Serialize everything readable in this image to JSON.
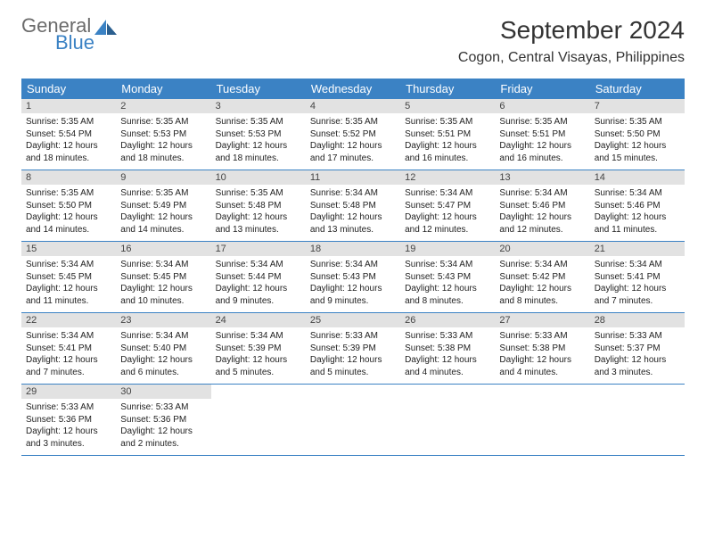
{
  "logo": {
    "general": "General",
    "blue": "Blue"
  },
  "title": "September 2024",
  "location": "Cogon, Central Visayas, Philippines",
  "colors": {
    "header_bg": "#3b82c4",
    "daynum_bg": "#e2e2e2",
    "row_border": "#3b82c4",
    "text": "#222222",
    "logo_gray": "#6b6b6b",
    "logo_blue": "#3b82c4"
  },
  "typography": {
    "title_fontsize": 28,
    "location_fontsize": 16,
    "dayhead_fontsize": 13,
    "daynum_fontsize": 11,
    "body_fontsize": 10
  },
  "day_names": [
    "Sunday",
    "Monday",
    "Tuesday",
    "Wednesday",
    "Thursday",
    "Friday",
    "Saturday"
  ],
  "weeks": [
    [
      {
        "n": "1",
        "sr": "5:35 AM",
        "ss": "5:54 PM",
        "dl": "12 hours and 18 minutes."
      },
      {
        "n": "2",
        "sr": "5:35 AM",
        "ss": "5:53 PM",
        "dl": "12 hours and 18 minutes."
      },
      {
        "n": "3",
        "sr": "5:35 AM",
        "ss": "5:53 PM",
        "dl": "12 hours and 18 minutes."
      },
      {
        "n": "4",
        "sr": "5:35 AM",
        "ss": "5:52 PM",
        "dl": "12 hours and 17 minutes."
      },
      {
        "n": "5",
        "sr": "5:35 AM",
        "ss": "5:51 PM",
        "dl": "12 hours and 16 minutes."
      },
      {
        "n": "6",
        "sr": "5:35 AM",
        "ss": "5:51 PM",
        "dl": "12 hours and 16 minutes."
      },
      {
        "n": "7",
        "sr": "5:35 AM",
        "ss": "5:50 PM",
        "dl": "12 hours and 15 minutes."
      }
    ],
    [
      {
        "n": "8",
        "sr": "5:35 AM",
        "ss": "5:50 PM",
        "dl": "12 hours and 14 minutes."
      },
      {
        "n": "9",
        "sr": "5:35 AM",
        "ss": "5:49 PM",
        "dl": "12 hours and 14 minutes."
      },
      {
        "n": "10",
        "sr": "5:35 AM",
        "ss": "5:48 PM",
        "dl": "12 hours and 13 minutes."
      },
      {
        "n": "11",
        "sr": "5:34 AM",
        "ss": "5:48 PM",
        "dl": "12 hours and 13 minutes."
      },
      {
        "n": "12",
        "sr": "5:34 AM",
        "ss": "5:47 PM",
        "dl": "12 hours and 12 minutes."
      },
      {
        "n": "13",
        "sr": "5:34 AM",
        "ss": "5:46 PM",
        "dl": "12 hours and 12 minutes."
      },
      {
        "n": "14",
        "sr": "5:34 AM",
        "ss": "5:46 PM",
        "dl": "12 hours and 11 minutes."
      }
    ],
    [
      {
        "n": "15",
        "sr": "5:34 AM",
        "ss": "5:45 PM",
        "dl": "12 hours and 11 minutes."
      },
      {
        "n": "16",
        "sr": "5:34 AM",
        "ss": "5:45 PM",
        "dl": "12 hours and 10 minutes."
      },
      {
        "n": "17",
        "sr": "5:34 AM",
        "ss": "5:44 PM",
        "dl": "12 hours and 9 minutes."
      },
      {
        "n": "18",
        "sr": "5:34 AM",
        "ss": "5:43 PM",
        "dl": "12 hours and 9 minutes."
      },
      {
        "n": "19",
        "sr": "5:34 AM",
        "ss": "5:43 PM",
        "dl": "12 hours and 8 minutes."
      },
      {
        "n": "20",
        "sr": "5:34 AM",
        "ss": "5:42 PM",
        "dl": "12 hours and 8 minutes."
      },
      {
        "n": "21",
        "sr": "5:34 AM",
        "ss": "5:41 PM",
        "dl": "12 hours and 7 minutes."
      }
    ],
    [
      {
        "n": "22",
        "sr": "5:34 AM",
        "ss": "5:41 PM",
        "dl": "12 hours and 7 minutes."
      },
      {
        "n": "23",
        "sr": "5:34 AM",
        "ss": "5:40 PM",
        "dl": "12 hours and 6 minutes."
      },
      {
        "n": "24",
        "sr": "5:34 AM",
        "ss": "5:39 PM",
        "dl": "12 hours and 5 minutes."
      },
      {
        "n": "25",
        "sr": "5:33 AM",
        "ss": "5:39 PM",
        "dl": "12 hours and 5 minutes."
      },
      {
        "n": "26",
        "sr": "5:33 AM",
        "ss": "5:38 PM",
        "dl": "12 hours and 4 minutes."
      },
      {
        "n": "27",
        "sr": "5:33 AM",
        "ss": "5:38 PM",
        "dl": "12 hours and 4 minutes."
      },
      {
        "n": "28",
        "sr": "5:33 AM",
        "ss": "5:37 PM",
        "dl": "12 hours and 3 minutes."
      }
    ],
    [
      {
        "n": "29",
        "sr": "5:33 AM",
        "ss": "5:36 PM",
        "dl": "12 hours and 3 minutes."
      },
      {
        "n": "30",
        "sr": "5:33 AM",
        "ss": "5:36 PM",
        "dl": "12 hours and 2 minutes."
      },
      null,
      null,
      null,
      null,
      null
    ]
  ],
  "labels": {
    "sunrise": "Sunrise:",
    "sunset": "Sunset:",
    "daylight": "Daylight:"
  }
}
